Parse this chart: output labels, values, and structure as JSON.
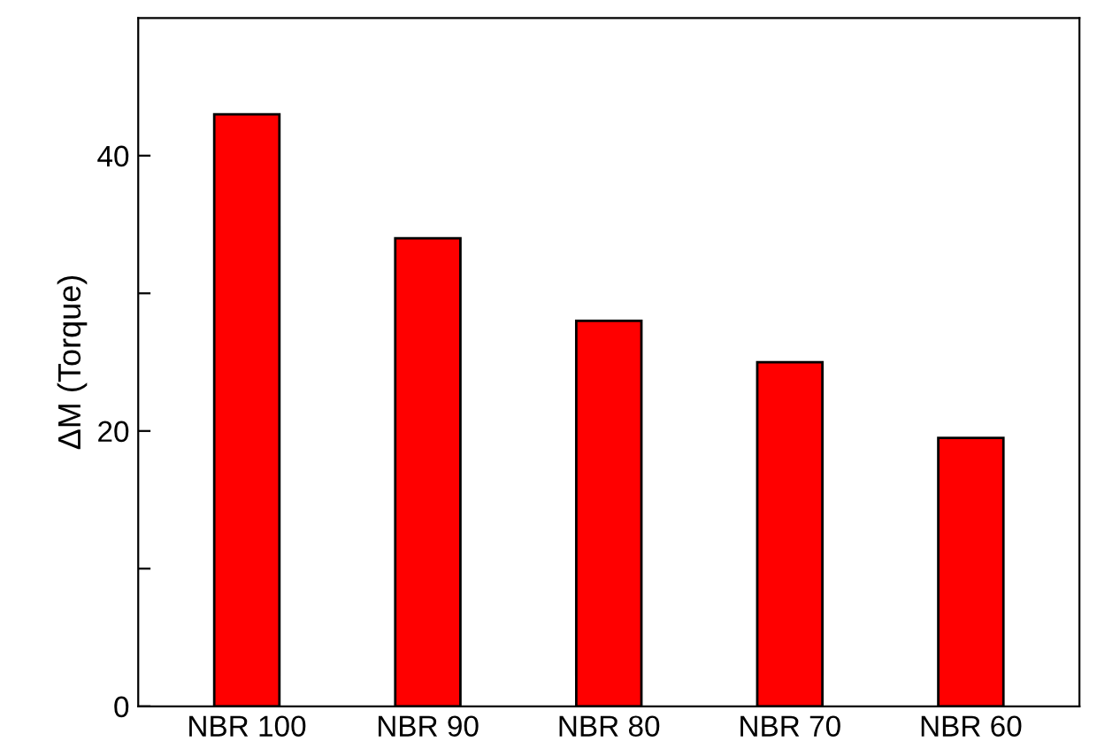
{
  "chart_data": {
    "type": "bar",
    "ylabel": "ΔM (Torque)",
    "categories": [
      "NBR 100",
      "NBR 90",
      "NBR 80",
      "NBR 70",
      "NBR 60"
    ],
    "values": [
      43,
      34,
      28,
      25,
      19.5
    ],
    "color": "#ff0000",
    "ylim": [
      0,
      50
    ],
    "yticks": [
      0,
      {
        "value": 10,
        "label": null
      },
      20,
      {
        "value": 30,
        "label": null
      },
      40
    ],
    "grid": false,
    "legend": false
  }
}
